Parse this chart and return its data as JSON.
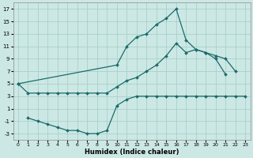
{
  "xlabel": "Humidex (Indice chaleur)",
  "xlim": [
    -0.5,
    23.5
  ],
  "ylim": [
    -4,
    18
  ],
  "yticks": [
    -3,
    -1,
    1,
    3,
    5,
    7,
    9,
    11,
    13,
    15,
    17
  ],
  "xticks": [
    0,
    1,
    2,
    3,
    4,
    5,
    6,
    7,
    8,
    9,
    10,
    11,
    12,
    13,
    14,
    15,
    16,
    17,
    18,
    19,
    20,
    21,
    22,
    23
  ],
  "bg_color": "#cce8e4",
  "grid_color": "#aacfcb",
  "line_color": "#1a6b6b",
  "line1_x": [
    0,
    1,
    2,
    3,
    4,
    5,
    6,
    7,
    8,
    9,
    10,
    11,
    12,
    13,
    14,
    15,
    16,
    17,
    18,
    19,
    20,
    21
  ],
  "line1_y": [
    5.0,
    3.5,
    3.5,
    3.5,
    3.5,
    3.5,
    3.5,
    3.5,
    3.5,
    3.5,
    4.5,
    5.5,
    6.0,
    7.0,
    8.0,
    9.5,
    11.5,
    10.0,
    10.5,
    10.0,
    9.0,
    6.5
  ],
  "line2_x": [
    0,
    10,
    11,
    12,
    13,
    14,
    15,
    16,
    17,
    18,
    19,
    20,
    21,
    22,
    23
  ],
  "line2_y": [
    5.0,
    8.0,
    11.0,
    12.5,
    13.0,
    14.5,
    15.5,
    17.0,
    12.0,
    10.5,
    10.0,
    9.5,
    9.0,
    7.0,
    null
  ],
  "line3_x": [
    1,
    2,
    3,
    4,
    5,
    6,
    7,
    8,
    9,
    10,
    11,
    12,
    13,
    14,
    15,
    16,
    17,
    18,
    19,
    20,
    21,
    22,
    23
  ],
  "line3_y": [
    -0.5,
    -1.0,
    -1.5,
    -2.0,
    -2.5,
    -2.5,
    -3.0,
    -3.0,
    -2.5,
    1.5,
    2.5,
    3.0,
    3.0,
    3.0,
    3.0,
    3.0,
    3.0,
    3.0,
    3.0,
    3.0,
    3.0,
    3.0,
    3.0
  ]
}
